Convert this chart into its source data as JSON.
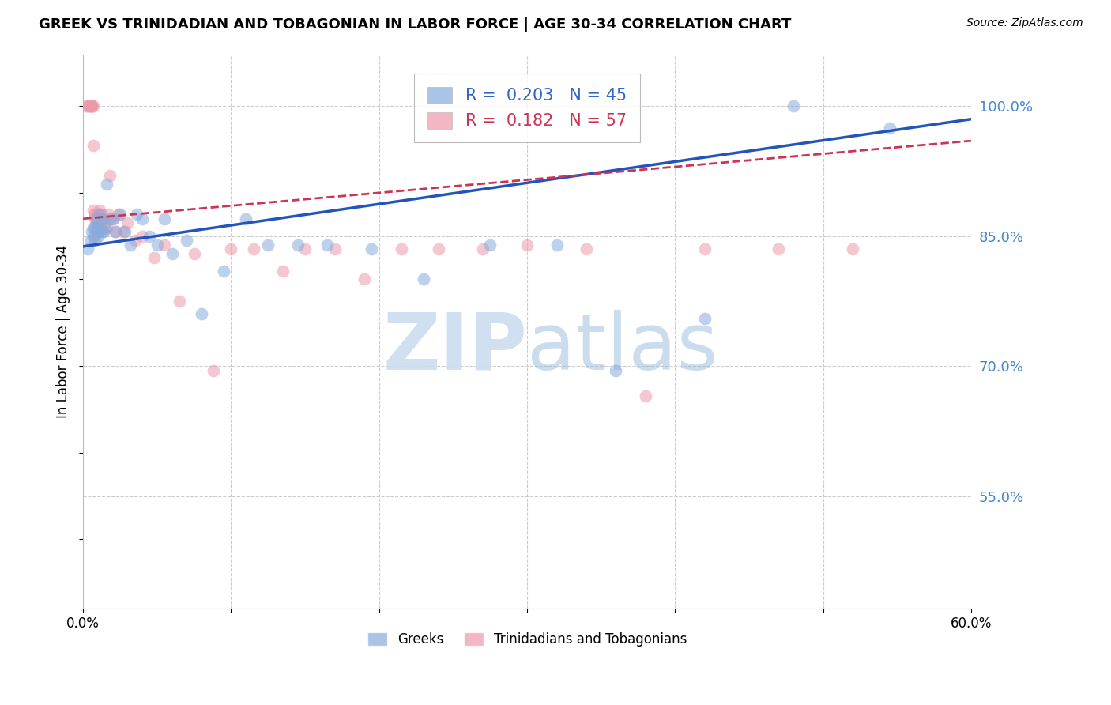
{
  "title": "GREEK VS TRINIDADIAN AND TOBAGONIAN IN LABOR FORCE | AGE 30-34 CORRELATION CHART",
  "source": "Source: ZipAtlas.com",
  "ylabel": "In Labor Force | Age 30-34",
  "xlim": [
    0.0,
    0.6
  ],
  "ylim": [
    0.42,
    1.06
  ],
  "yticks_right": [
    0.55,
    0.7,
    0.85,
    1.0
  ],
  "ytick_right_labels": [
    "55.0%",
    "70.0%",
    "85.0%",
    "100.0%"
  ],
  "greek_color": "#88aadd",
  "tnt_color": "#ee99aa",
  "greek_R": 0.203,
  "greek_N": 45,
  "tnt_R": 0.182,
  "tnt_N": 57,
  "legend_greek_color": "#3366cc",
  "legend_tnt_color": "#cc3355",
  "grid_color": "#cccccc",
  "right_axis_color": "#4488cc",
  "watermark_color": "#ccddf0",
  "background_color": "#ffffff",
  "greek_x": [
    0.003,
    0.005,
    0.006,
    0.007,
    0.007,
    0.008,
    0.008,
    0.009,
    0.009,
    0.01,
    0.01,
    0.011,
    0.011,
    0.012,
    0.013,
    0.014,
    0.015,
    0.016,
    0.018,
    0.02,
    0.022,
    0.025,
    0.028,
    0.032,
    0.036,
    0.04,
    0.045,
    0.05,
    0.055,
    0.06,
    0.07,
    0.08,
    0.095,
    0.11,
    0.125,
    0.145,
    0.165,
    0.195,
    0.23,
    0.275,
    0.32,
    0.36,
    0.42,
    0.48,
    0.545
  ],
  "greek_y": [
    0.835,
    0.845,
    0.855,
    0.85,
    0.86,
    0.845,
    0.86,
    0.855,
    0.87,
    0.85,
    0.86,
    0.855,
    0.875,
    0.87,
    0.855,
    0.855,
    0.86,
    0.91,
    0.87,
    0.87,
    0.855,
    0.875,
    0.855,
    0.84,
    0.875,
    0.87,
    0.85,
    0.84,
    0.87,
    0.83,
    0.845,
    0.76,
    0.81,
    0.87,
    0.84,
    0.84,
    0.84,
    0.835,
    0.8,
    0.84,
    0.84,
    0.695,
    0.755,
    1.0,
    0.975
  ],
  "tnt_x": [
    0.002,
    0.003,
    0.004,
    0.004,
    0.005,
    0.005,
    0.006,
    0.006,
    0.006,
    0.007,
    0.007,
    0.007,
    0.008,
    0.008,
    0.008,
    0.009,
    0.009,
    0.01,
    0.01,
    0.01,
    0.011,
    0.011,
    0.012,
    0.012,
    0.013,
    0.014,
    0.015,
    0.016,
    0.017,
    0.018,
    0.02,
    0.022,
    0.024,
    0.027,
    0.03,
    0.035,
    0.04,
    0.048,
    0.055,
    0.065,
    0.075,
    0.088,
    0.1,
    0.115,
    0.135,
    0.15,
    0.17,
    0.19,
    0.215,
    0.24,
    0.27,
    0.3,
    0.34,
    0.38,
    0.42,
    0.47,
    0.52
  ],
  "tnt_y": [
    1.0,
    1.0,
    1.0,
    1.0,
    1.0,
    1.0,
    1.0,
    1.0,
    1.0,
    1.0,
    0.955,
    0.88,
    0.875,
    0.87,
    0.875,
    0.865,
    0.87,
    0.875,
    0.87,
    0.865,
    0.87,
    0.88,
    0.875,
    0.865,
    0.87,
    0.87,
    0.865,
    0.86,
    0.875,
    0.92,
    0.87,
    0.855,
    0.875,
    0.855,
    0.865,
    0.845,
    0.85,
    0.825,
    0.84,
    0.775,
    0.83,
    0.695,
    0.835,
    0.835,
    0.81,
    0.835,
    0.835,
    0.8,
    0.835,
    0.835,
    0.835,
    0.84,
    0.835,
    0.665,
    0.835,
    0.835,
    0.835
  ],
  "greek_trend_x": [
    0.0,
    0.6
  ],
  "greek_trend_y": [
    0.838,
    0.985
  ],
  "tnt_trend_x": [
    0.0,
    0.6
  ],
  "tnt_trend_y": [
    0.87,
    0.96
  ]
}
